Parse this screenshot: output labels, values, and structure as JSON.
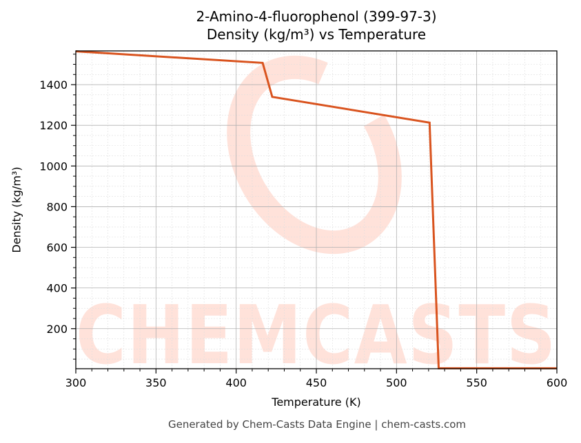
{
  "chart_data": {
    "type": "line",
    "title": "2-Amino-4-fluorophenol (399-97-3)",
    "subtitle": "Density (kg/m³) vs Temperature",
    "xlabel": "Temperature (K)",
    "ylabel": "Density (kg/m³)",
    "xlim": [
      300,
      600
    ],
    "ylim": [
      3,
      1566
    ],
    "xticks": [
      300,
      350,
      400,
      450,
      500,
      550,
      600
    ],
    "yticks": [
      200,
      400,
      600,
      800,
      1000,
      1200,
      1400
    ],
    "grid": true,
    "legend": null,
    "series": [
      {
        "name": "Density",
        "color": "#d9531e",
        "x": [
          300,
          416.5,
          422.5,
          520.6,
          526.3,
          600
        ],
        "y": [
          1564,
          1507,
          1340,
          1213,
          5,
          5
        ]
      }
    ]
  },
  "header": {
    "title": "2-Amino-4-fluorophenol (399-97-3)",
    "subtitle": "Density (kg/m³) vs Temperature"
  },
  "axes": {
    "xlabel": "Temperature (K)",
    "ylabel": "Density (kg/m³)",
    "xtick_labels": [
      "300",
      "350",
      "400",
      "450",
      "500",
      "550",
      "600"
    ],
    "ytick_labels": [
      "200",
      "400",
      "600",
      "800",
      "1000",
      "1200",
      "1400"
    ]
  },
  "watermark": {
    "text": "CHEMCASTS",
    "color": "#ffe2da"
  },
  "footer": {
    "text": "Generated by Chem-Casts Data Engine | chem-casts.com"
  },
  "colors": {
    "line": "#d9531e",
    "watermark": "#ffe2da",
    "grid_major": "#b0b0b0",
    "grid_minor": "#dddddd"
  }
}
